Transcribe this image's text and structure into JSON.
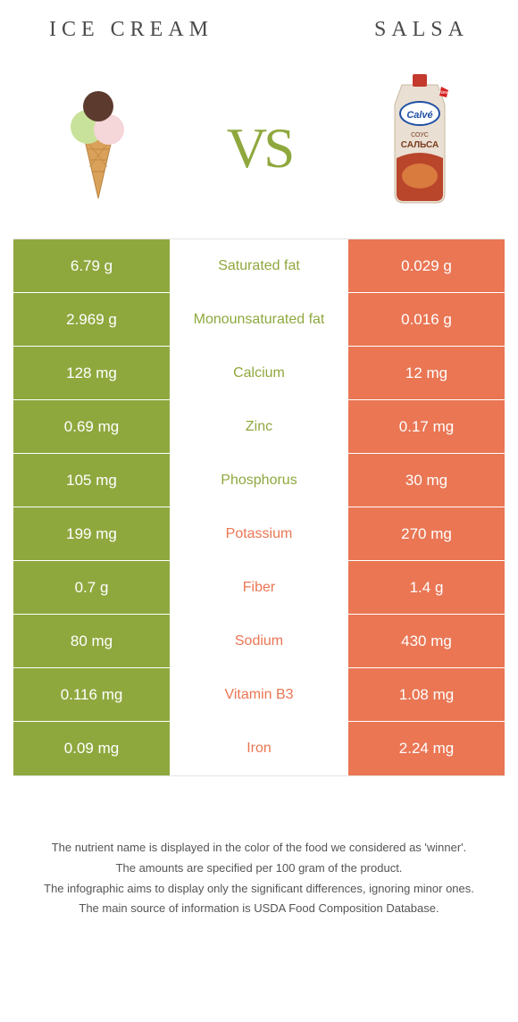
{
  "colors": {
    "left": "#8fa83e",
    "right": "#ea7654",
    "border": "#e5e5e5",
    "title": "#4a4a4a",
    "footnote": "#555555"
  },
  "header": {
    "left_title": "Ice cream",
    "right_title": "Salsa",
    "vs": "vs"
  },
  "rows": [
    {
      "left": "6.79 g",
      "label": "Saturated fat",
      "right": "0.029 g",
      "winner": "left"
    },
    {
      "left": "2.969 g",
      "label": "Monounsaturated fat",
      "right": "0.016 g",
      "winner": "left"
    },
    {
      "left": "128 mg",
      "label": "Calcium",
      "right": "12 mg",
      "winner": "left"
    },
    {
      "left": "0.69 mg",
      "label": "Zinc",
      "right": "0.17 mg",
      "winner": "left"
    },
    {
      "left": "105 mg",
      "label": "Phosphorus",
      "right": "30 mg",
      "winner": "left"
    },
    {
      "left": "199 mg",
      "label": "Potassium",
      "right": "270 mg",
      "winner": "right"
    },
    {
      "left": "0.7 g",
      "label": "Fiber",
      "right": "1.4 g",
      "winner": "right"
    },
    {
      "left": "80 mg",
      "label": "Sodium",
      "right": "430 mg",
      "winner": "right"
    },
    {
      "left": "0.116 mg",
      "label": "Vitamin B3",
      "right": "1.08 mg",
      "winner": "right"
    },
    {
      "left": "0.09 mg",
      "label": "Iron",
      "right": "2.24 mg",
      "winner": "right"
    }
  ],
  "footnotes": [
    "The nutrient name is displayed in the color of the food we considered as 'winner'.",
    "The amounts are specified per 100 gram of the product.",
    "The infographic aims to display only the significant differences, ignoring minor ones.",
    "The main source of information is USDA Food Composition Database."
  ]
}
